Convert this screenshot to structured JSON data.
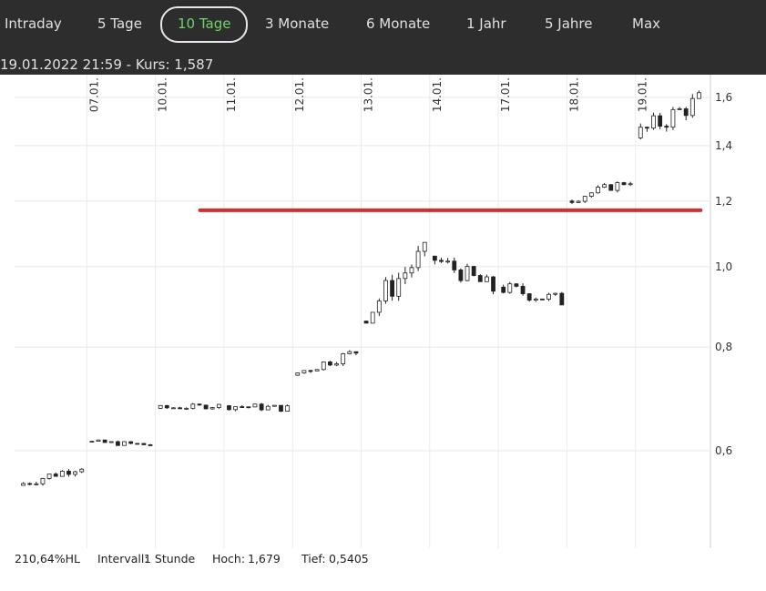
{
  "tabs": [
    {
      "label": "Intraday",
      "active": false
    },
    {
      "label": "5 Tage",
      "active": false
    },
    {
      "label": "10 Tage",
      "active": true
    },
    {
      "label": "3 Monate",
      "active": false
    },
    {
      "label": "6 Monate",
      "active": false
    },
    {
      "label": "1 Jahr",
      "active": false
    },
    {
      "label": "5 Jahre",
      "active": false
    },
    {
      "label": "Max",
      "active": false
    }
  ],
  "header": {
    "datetime": "19.01.2022 21:59",
    "separator": "-",
    "price_label": "Kurs:",
    "price": "1,587"
  },
  "footer": {
    "performance": "210,64%HL",
    "interval_label": "Intervall:",
    "interval": "1 Stunde",
    "high_label": "Hoch:",
    "high": "1,679",
    "low_label": "Tief:",
    "low": "0,5405"
  },
  "colors": {
    "active_tab": "#6fd36a",
    "topbar": "#2d2d2d",
    "level_line": "#d32f2f",
    "candle": "#222222"
  },
  "chart_data": {
    "type": "candlestick",
    "y_scale": "log",
    "ylim": [
      0.5,
      1.7
    ],
    "y_ticks": [
      {
        "value": 0.6,
        "label": "0,6"
      },
      {
        "value": 0.8,
        "label": "0,8"
      },
      {
        "value": 1.0,
        "label": "1,0"
      },
      {
        "value": 1.2,
        "label": "1,2"
      },
      {
        "value": 1.4,
        "label": "1,4"
      },
      {
        "value": 1.6,
        "label": "1,6"
      }
    ],
    "x_ticks": [
      "07.01.",
      "10.01.",
      "11.01.",
      "12.01.",
      "13.01.",
      "14.01.",
      "17.01.",
      "18.01.",
      "19.01."
    ],
    "horizontal_line": {
      "value": 1.17,
      "start_day": 2.65,
      "end_day": 9.95
    },
    "days": [
      {
        "o": 0.545,
        "c": 0.575,
        "h": 0.585,
        "l": 0.54
      },
      {
        "o": 0.615,
        "c": 0.61,
        "h": 0.63,
        "l": 0.605
      },
      {
        "o": 0.675,
        "c": 0.68,
        "h": 0.695,
        "l": 0.665
      },
      {
        "o": 0.68,
        "c": 0.675,
        "h": 0.695,
        "l": 0.655
      },
      {
        "o": 0.74,
        "c": 0.79,
        "h": 0.8,
        "l": 0.735
      },
      {
        "o": 0.86,
        "c": 1.04,
        "h": 1.07,
        "l": 0.855
      },
      {
        "o": 1.03,
        "c": 0.94,
        "h": 1.04,
        "l": 0.895
      },
      {
        "o": 0.945,
        "c": 0.91,
        "h": 0.965,
        "l": 0.855
      },
      {
        "o": 1.2,
        "c": 1.27,
        "h": 1.28,
        "l": 1.19
      },
      {
        "o": 1.43,
        "c": 1.587,
        "h": 1.679,
        "l": 1.41
      }
    ]
  }
}
